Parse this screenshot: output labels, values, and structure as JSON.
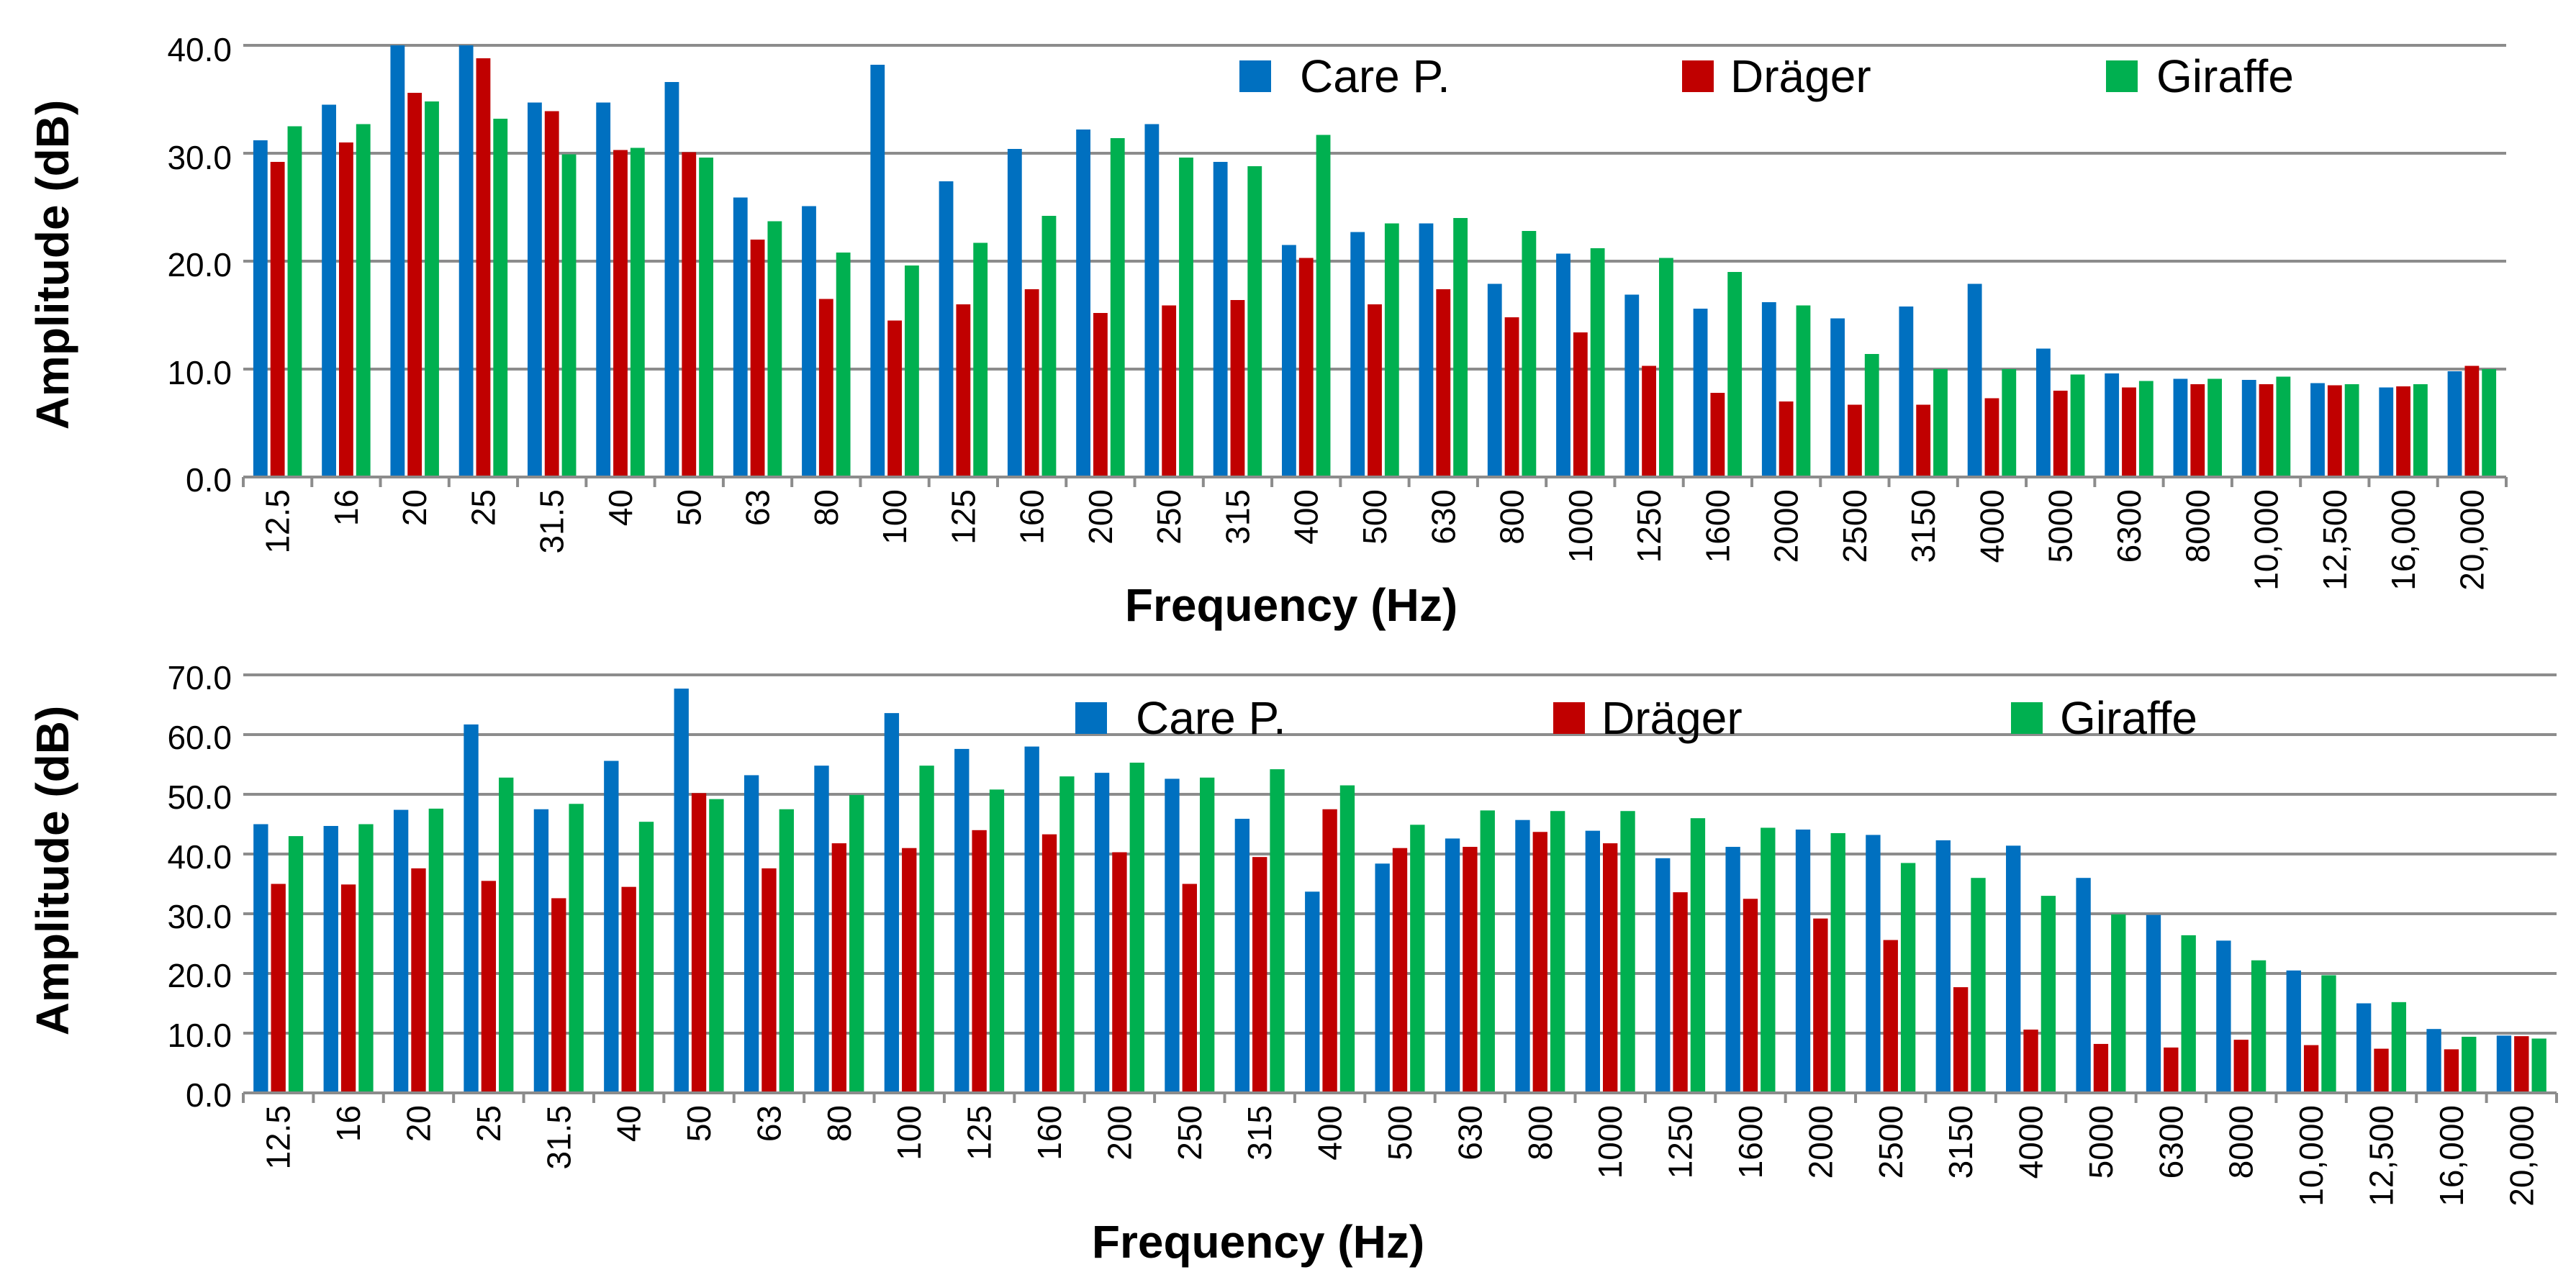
{
  "colors": {
    "care": "#0070C0",
    "drager": "#C00000",
    "giraffe": "#00B050"
  },
  "chart_data": [
    {
      "type": "bar",
      "title": "",
      "xlabel": "Frequency (Hz)",
      "ylabel": "Amplitude (dB)",
      "ylim": [
        0,
        40
      ],
      "yticks": [
        "0.0",
        "10.0",
        "20.0",
        "30.0",
        "40.0"
      ],
      "legend_position": "top-right",
      "categories": [
        "12.5",
        "16",
        "20",
        "25",
        "31.5",
        "40",
        "50",
        "63",
        "80",
        "100",
        "125",
        "160",
        "200",
        "250",
        "315",
        "400",
        "500",
        "630",
        "800",
        "1000",
        "1250",
        "1600",
        "2000",
        "2500",
        "3150",
        "4000",
        "5000",
        "6300",
        "8000",
        "10,000",
        "12,500",
        "16,000",
        "20,000"
      ],
      "series": [
        {
          "name": "Care P.",
          "values": [
            31.2,
            34.5,
            40.0,
            40.0,
            34.7,
            34.7,
            36.6,
            25.9,
            25.1,
            38.2,
            27.4,
            30.4,
            32.2,
            32.7,
            29.2,
            21.5,
            22.7,
            23.5,
            17.9,
            20.7,
            16.9,
            15.6,
            16.2,
            14.7,
            15.8,
            17.9,
            11.9,
            9.6,
            9.1,
            9.0,
            8.7,
            8.3,
            9.8
          ]
        },
        {
          "name": "Dräger",
          "values": [
            29.2,
            31.0,
            35.6,
            38.8,
            33.9,
            30.3,
            30.1,
            22.0,
            16.5,
            14.5,
            16.0,
            17.4,
            15.2,
            15.9,
            16.4,
            20.3,
            16.0,
            17.4,
            14.8,
            13.4,
            10.3,
            7.8,
            7.0,
            6.7,
            6.7,
            7.3,
            8.0,
            8.3,
            8.6,
            8.6,
            8.5,
            8.4,
            10.3
          ]
        },
        {
          "name": "Giraffe",
          "values": [
            32.5,
            32.7,
            34.8,
            33.2,
            29.9,
            30.5,
            29.6,
            23.7,
            20.8,
            19.6,
            21.7,
            24.2,
            31.4,
            29.6,
            28.8,
            31.7,
            23.5,
            24.0,
            22.8,
            21.2,
            20.3,
            19.0,
            15.9,
            11.4,
            10.0,
            10.0,
            9.5,
            8.9,
            9.1,
            9.3,
            8.6,
            8.6,
            10.0
          ]
        }
      ]
    },
    {
      "type": "bar",
      "title": "",
      "xlabel": "Frequency (Hz)",
      "ylabel": "Amplitude (dB)",
      "ylim": [
        0,
        70
      ],
      "yticks": [
        "0.0",
        "10.0",
        "20.0",
        "30.0",
        "40.0",
        "50.0",
        "60.0",
        "70.0"
      ],
      "legend_position": "top",
      "categories": [
        "12.5",
        "16",
        "20",
        "25",
        "31.5",
        "40",
        "50",
        "63",
        "80",
        "100",
        "125",
        "160",
        "200",
        "250",
        "315",
        "400",
        "500",
        "630",
        "800",
        "1000",
        "1250",
        "1600",
        "2000",
        "2500",
        "3150",
        "4000",
        "5000",
        "6300",
        "8000",
        "10,000",
        "12,500",
        "16,000",
        "20,000"
      ],
      "series": [
        {
          "name": "Care P.",
          "values": [
            45.0,
            44.7,
            47.4,
            61.7,
            47.5,
            55.6,
            67.7,
            53.2,
            54.8,
            63.6,
            57.6,
            58.0,
            53.6,
            52.6,
            45.9,
            33.7,
            38.4,
            42.6,
            45.7,
            43.9,
            39.3,
            41.2,
            44.1,
            43.2,
            42.3,
            41.4,
            36.0,
            29.8,
            25.5,
            20.5,
            15.0,
            10.7,
            9.6
          ]
        },
        {
          "name": "Dräger",
          "values": [
            35.0,
            34.9,
            37.6,
            35.5,
            32.6,
            34.5,
            50.2,
            37.6,
            41.8,
            41.0,
            44.0,
            43.3,
            40.3,
            35.0,
            39.5,
            47.5,
            41.0,
            41.2,
            43.7,
            41.8,
            33.6,
            32.5,
            29.2,
            25.6,
            17.7,
            10.6,
            8.2,
            7.6,
            8.9,
            8.0,
            7.4,
            7.3,
            9.5
          ]
        },
        {
          "name": "Giraffe",
          "values": [
            43.0,
            45.0,
            47.6,
            52.8,
            48.4,
            45.4,
            49.2,
            47.5,
            49.9,
            54.8,
            50.8,
            53.0,
            55.3,
            52.8,
            54.2,
            51.5,
            44.9,
            47.3,
            47.2,
            47.2,
            46.0,
            44.4,
            43.5,
            38.5,
            36.0,
            33.0,
            29.9,
            26.4,
            22.2,
            19.7,
            15.2,
            9.4,
            9.1
          ]
        }
      ]
    }
  ]
}
